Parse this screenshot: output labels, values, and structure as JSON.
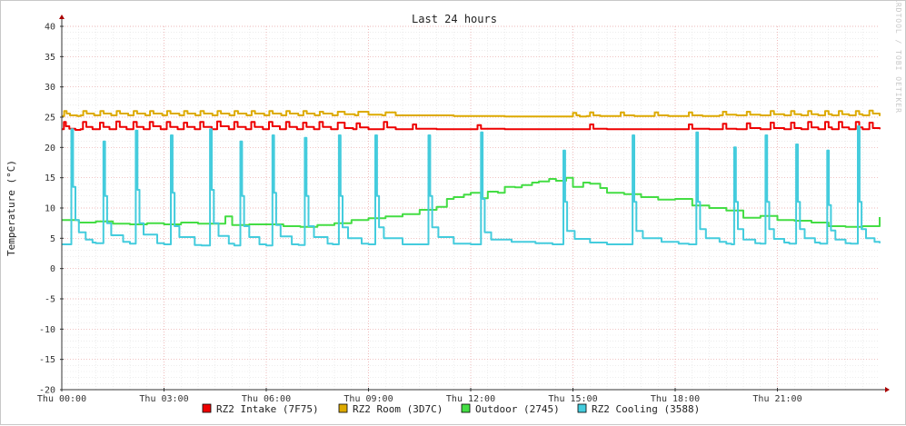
{
  "chart_data": {
    "type": "line",
    "title": "Last 24 hours",
    "ylabel": "Temperature (°C)",
    "xlabel": "",
    "watermark": "RRDTOOL / TOBI OETIKER",
    "ylim": [
      -20,
      40
    ],
    "xlim": [
      0,
      24.0
    ],
    "y_ticks": [
      -20,
      -15,
      -10,
      -5,
      0,
      5,
      10,
      15,
      20,
      25,
      30,
      35,
      40
    ],
    "x_ticks": [
      {
        "value": 0,
        "label": "Thu 00:00"
      },
      {
        "value": 3,
        "label": "Thu 03:00"
      },
      {
        "value": 6,
        "label": "Thu 06:00"
      },
      {
        "value": 9,
        "label": "Thu 09:00"
      },
      {
        "value": 12,
        "label": "Thu 12:00"
      },
      {
        "value": 15,
        "label": "Thu 15:00"
      },
      {
        "value": 18,
        "label": "Thu 18:00"
      },
      {
        "value": 21,
        "label": "Thu 21:00"
      }
    ],
    "grid": true,
    "legend_position": "bottom",
    "series": [
      {
        "name": "RZ2 Intake (7F75)",
        "color": "#ee0000",
        "x": [
          0.0,
          0.06,
          0.12,
          0.22,
          0.4,
          0.55,
          0.62,
          0.72,
          0.9,
          1.04,
          1.12,
          1.22,
          1.4,
          1.53,
          1.6,
          1.7,
          1.9,
          2.02,
          2.1,
          2.2,
          2.4,
          2.5,
          2.58,
          2.68,
          2.9,
          3.0,
          3.08,
          3.18,
          3.4,
          3.5,
          3.58,
          3.68,
          3.9,
          3.98,
          4.06,
          4.16,
          4.4,
          4.48,
          4.56,
          4.66,
          4.9,
          4.98,
          5.06,
          5.16,
          5.4,
          5.48,
          5.56,
          5.66,
          5.9,
          6.0,
          6.08,
          6.18,
          6.4,
          6.5,
          6.58,
          6.68,
          6.9,
          7.0,
          7.08,
          7.18,
          7.4,
          7.48,
          7.56,
          7.66,
          7.9,
          8.0,
          8.1,
          8.3,
          8.55,
          8.65,
          8.75,
          9.0,
          9.35,
          9.45,
          9.55,
          9.8,
          10.0,
          10.2,
          10.3,
          10.4,
          11.0,
          11.5,
          12.1,
          12.2,
          12.3,
          13.0,
          13.5,
          14.0,
          14.5,
          15.0,
          15.4,
          15.5,
          15.6,
          16.0,
          16.5,
          17.0,
          17.5,
          18.0,
          18.3,
          18.4,
          18.5,
          19.0,
          19.3,
          19.4,
          19.5,
          19.8,
          20.0,
          20.1,
          20.2,
          20.5,
          20.7,
          20.8,
          20.9,
          21.2,
          21.3,
          21.4,
          21.5,
          21.7,
          21.8,
          21.9,
          22.0,
          22.2,
          22.3,
          22.4,
          22.5,
          22.6,
          22.7,
          22.8,
          22.9,
          23.1,
          23.2,
          23.3,
          23.4,
          23.5,
          23.6,
          23.7,
          23.8,
          24.0
        ],
        "values": [
          23.0,
          24.2,
          23.5,
          23.1,
          22.9,
          23.0,
          24.2,
          23.4,
          23.0,
          23.0,
          24.1,
          23.4,
          23.0,
          23.0,
          24.3,
          23.4,
          23.0,
          23.0,
          24.2,
          23.4,
          23.0,
          23.0,
          24.2,
          23.5,
          23.0,
          23.0,
          24.2,
          23.4,
          23.0,
          23.0,
          24.1,
          23.4,
          23.0,
          23.0,
          24.2,
          23.4,
          23.0,
          23.0,
          24.3,
          23.5,
          23.0,
          23.0,
          24.2,
          23.4,
          23.0,
          23.0,
          24.2,
          23.4,
          23.0,
          23.0,
          24.2,
          23.5,
          23.0,
          23.0,
          24.2,
          23.4,
          23.0,
          23.0,
          24.1,
          23.4,
          23.0,
          23.0,
          24.2,
          23.4,
          23.0,
          23.0,
          24.1,
          23.2,
          23.0,
          24.0,
          23.3,
          23.0,
          23.0,
          24.2,
          23.3,
          23.0,
          23.0,
          23.0,
          23.8,
          23.1,
          23.0,
          23.0,
          23.0,
          23.7,
          23.1,
          23.0,
          23.0,
          23.0,
          23.0,
          23.0,
          23.0,
          23.8,
          23.1,
          23.0,
          23.0,
          23.0,
          23.0,
          23.0,
          23.0,
          23.8,
          23.1,
          23.0,
          23.0,
          23.9,
          23.1,
          23.0,
          23.0,
          24.0,
          23.2,
          23.0,
          23.0,
          24.1,
          23.2,
          23.0,
          23.0,
          24.1,
          23.2,
          23.0,
          23.0,
          24.2,
          23.3,
          23.0,
          23.0,
          24.2,
          23.3,
          23.0,
          23.0,
          24.2,
          23.3,
          23.0,
          23.0,
          24.2,
          23.3,
          23.0,
          23.0,
          24.1,
          23.2,
          23.0
        ]
      },
      {
        "name": "RZ2 Room (3D7C)",
        "color": "#ddaa00",
        "x": [
          0.0,
          0.07,
          0.14,
          0.24,
          0.45,
          0.55,
          0.63,
          0.73,
          0.95,
          1.04,
          1.13,
          1.23,
          1.45,
          1.53,
          1.61,
          1.71,
          1.95,
          2.02,
          2.11,
          2.21,
          2.45,
          2.5,
          2.59,
          2.69,
          2.95,
          3.0,
          3.09,
          3.19,
          3.45,
          3.5,
          3.59,
          3.69,
          3.92,
          3.98,
          4.07,
          4.17,
          4.42,
          4.48,
          4.57,
          4.67,
          4.92,
          4.98,
          5.07,
          5.17,
          5.42,
          5.48,
          5.57,
          5.67,
          5.94,
          6.0,
          6.09,
          6.19,
          6.44,
          6.5,
          6.59,
          6.69,
          6.94,
          7.0,
          7.09,
          7.19,
          7.42,
          7.48,
          7.57,
          7.67,
          7.94,
          8.0,
          8.1,
          8.3,
          8.6,
          8.7,
          9.0,
          9.4,
          9.5,
          9.8,
          10.0,
          10.5,
          11.0,
          11.5,
          12.0,
          12.5,
          13.0,
          13.5,
          14.0,
          14.5,
          14.95,
          15.0,
          15.1,
          15.2,
          15.4,
          15.5,
          15.6,
          15.8,
          16.0,
          16.3,
          16.4,
          16.5,
          16.8,
          17.0,
          17.3,
          17.4,
          17.5,
          17.8,
          18.0,
          18.3,
          18.4,
          18.5,
          18.8,
          19.0,
          19.3,
          19.4,
          19.5,
          19.8,
          20.0,
          20.1,
          20.2,
          20.5,
          20.7,
          20.8,
          20.9,
          21.2,
          21.3,
          21.4,
          21.5,
          21.7,
          21.8,
          21.9,
          22.0,
          22.2,
          22.3,
          22.4,
          22.5,
          22.6,
          22.7,
          22.8,
          22.9,
          23.1,
          23.2,
          23.3,
          23.4,
          23.5,
          23.6,
          23.7,
          23.8,
          24.0
        ],
        "values": [
          25.2,
          26.0,
          25.6,
          25.3,
          25.2,
          25.3,
          26.0,
          25.6,
          25.3,
          25.3,
          26.0,
          25.6,
          25.3,
          25.3,
          26.0,
          25.6,
          25.3,
          25.3,
          26.0,
          25.6,
          25.3,
          25.3,
          26.0,
          25.6,
          25.3,
          25.3,
          26.0,
          25.6,
          25.3,
          25.3,
          26.0,
          25.6,
          25.3,
          25.3,
          26.0,
          25.6,
          25.3,
          25.3,
          26.0,
          25.6,
          25.3,
          25.3,
          26.0,
          25.6,
          25.3,
          25.3,
          26.0,
          25.6,
          25.3,
          25.3,
          26.0,
          25.6,
          25.3,
          25.3,
          26.0,
          25.6,
          25.3,
          25.3,
          26.0,
          25.6,
          25.3,
          25.3,
          25.9,
          25.6,
          25.3,
          25.3,
          25.9,
          25.5,
          25.3,
          25.9,
          25.4,
          25.3,
          25.8,
          25.3,
          25.3,
          25.3,
          25.3,
          25.2,
          25.2,
          25.2,
          25.1,
          25.1,
          25.1,
          25.1,
          25.1,
          25.7,
          25.3,
          25.1,
          25.2,
          25.8,
          25.3,
          25.2,
          25.2,
          25.2,
          25.8,
          25.3,
          25.2,
          25.2,
          25.2,
          25.8,
          25.3,
          25.2,
          25.2,
          25.2,
          25.8,
          25.3,
          25.2,
          25.2,
          25.3,
          25.9,
          25.4,
          25.3,
          25.3,
          25.9,
          25.4,
          25.3,
          25.3,
          26.0,
          25.5,
          25.3,
          25.3,
          26.0,
          25.5,
          25.3,
          25.3,
          26.0,
          25.5,
          25.3,
          25.3,
          26.0,
          25.5,
          25.3,
          25.3,
          26.0,
          25.5,
          25.3,
          25.3,
          26.0,
          25.5,
          25.3,
          25.3,
          26.1,
          25.6,
          25.2
        ]
      },
      {
        "name": "Outdoor (2745)",
        "color": "#44dd44",
        "x": [
          0.0,
          0.5,
          1.0,
          1.5,
          2.0,
          2.5,
          3.0,
          3.5,
          4.0,
          4.5,
          4.8,
          5.0,
          5.5,
          6.0,
          6.5,
          7.0,
          7.5,
          8.0,
          8.5,
          9.0,
          9.5,
          10.0,
          10.5,
          11.0,
          11.3,
          11.5,
          11.8,
          12.0,
          12.3,
          12.5,
          12.8,
          13.0,
          13.3,
          13.5,
          13.8,
          14.0,
          14.3,
          14.5,
          14.8,
          15.0,
          15.3,
          15.5,
          15.8,
          16.0,
          16.5,
          17.0,
          17.5,
          18.0,
          18.5,
          19.0,
          19.5,
          20.0,
          20.5,
          21.0,
          21.5,
          22.0,
          22.5,
          23.0,
          23.5,
          24.0
        ],
        "values": [
          8.0,
          7.6,
          7.8,
          7.4,
          7.3,
          7.5,
          7.3,
          7.6,
          7.4,
          7.4,
          8.6,
          7.2,
          7.3,
          7.3,
          7.0,
          6.9,
          7.2,
          7.5,
          8.0,
          8.3,
          8.6,
          9.0,
          9.7,
          10.2,
          11.5,
          11.8,
          12.2,
          12.5,
          11.6,
          12.7,
          12.5,
          13.5,
          13.4,
          13.8,
          14.2,
          14.4,
          14.8,
          14.5,
          15.0,
          13.5,
          14.2,
          14.0,
          13.3,
          12.5,
          12.3,
          11.8,
          11.4,
          11.5,
          10.4,
          10.0,
          9.6,
          8.4,
          8.7,
          8.0,
          7.9,
          7.6,
          7.0,
          6.9,
          7.0,
          8.5
        ]
      },
      {
        "name": "RZ2 Cooling (3588)",
        "color": "#44ccdd",
        "x": [
          0.0,
          0.2,
          0.28,
          0.33,
          0.4,
          0.5,
          0.7,
          0.9,
          1.0,
          1.14,
          1.22,
          1.27,
          1.33,
          1.45,
          1.8,
          2.0,
          2.09,
          2.17,
          2.22,
          2.28,
          2.4,
          2.8,
          3.0,
          3.12,
          3.2,
          3.25,
          3.31,
          3.45,
          3.9,
          4.1,
          4.27,
          4.35,
          4.4,
          4.46,
          4.6,
          4.9,
          5.06,
          5.16,
          5.24,
          5.29,
          5.35,
          5.5,
          5.8,
          6.0,
          6.1,
          6.18,
          6.23,
          6.29,
          6.42,
          6.75,
          6.95,
          7.05,
          7.13,
          7.18,
          7.24,
          7.4,
          7.8,
          7.95,
          8.05,
          8.13,
          8.18,
          8.24,
          8.4,
          8.8,
          9.0,
          9.12,
          9.2,
          9.25,
          9.31,
          9.45,
          10.0,
          10.5,
          10.68,
          10.76,
          10.81,
          10.87,
          11.05,
          11.5,
          12.0,
          12.22,
          12.3,
          12.35,
          12.41,
          12.6,
          13.2,
          13.9,
          14.4,
          14.64,
          14.72,
          14.77,
          14.83,
          15.05,
          15.5,
          16.0,
          16.67,
          16.75,
          16.8,
          16.86,
          17.05,
          17.6,
          18.1,
          18.4,
          18.54,
          18.62,
          18.67,
          18.73,
          18.9,
          19.3,
          19.5,
          19.65,
          19.73,
          19.78,
          19.84,
          20.0,
          20.35,
          20.5,
          20.57,
          20.65,
          20.7,
          20.76,
          20.9,
          21.2,
          21.35,
          21.47,
          21.55,
          21.6,
          21.66,
          21.8,
          22.1,
          22.25,
          22.38,
          22.46,
          22.51,
          22.57,
          22.7,
          23.0,
          23.15,
          23.28,
          23.36,
          23.41,
          23.47,
          23.6,
          23.85,
          24.0
        ],
        "values": [
          4.0,
          4.0,
          23.0,
          13.5,
          8.0,
          6.0,
          4.8,
          4.3,
          4.2,
          4.2,
          21.0,
          12.0,
          7.5,
          5.5,
          4.4,
          4.1,
          4.1,
          22.8,
          13.0,
          7.5,
          5.6,
          4.2,
          4.0,
          4.0,
          22.0,
          12.5,
          7.0,
          5.2,
          3.9,
          3.8,
          3.8,
          23.0,
          13.0,
          7.5,
          5.4,
          4.1,
          3.8,
          3.8,
          21.0,
          12.0,
          7.0,
          5.2,
          4.0,
          3.8,
          3.8,
          22.0,
          12.5,
          7.2,
          5.3,
          4.0,
          3.9,
          3.9,
          21.6,
          12.0,
          7.0,
          5.2,
          4.1,
          4.0,
          4.0,
          22.0,
          12.0,
          6.8,
          5.0,
          4.1,
          4.0,
          4.0,
          22.0,
          12.0,
          6.8,
          5.0,
          4.0,
          4.0,
          4.0,
          22.0,
          12.0,
          6.8,
          5.2,
          4.1,
          4.0,
          4.0,
          22.5,
          11.5,
          6.0,
          4.8,
          4.4,
          4.2,
          4.0,
          4.0,
          19.5,
          11.0,
          6.2,
          4.9,
          4.3,
          4.0,
          4.0,
          22.0,
          11.0,
          6.2,
          5.0,
          4.4,
          4.1,
          4.0,
          4.0,
          22.5,
          11.0,
          6.5,
          5.0,
          4.4,
          4.1,
          4.0,
          20.0,
          11.0,
          6.5,
          4.8,
          4.2,
          4.1,
          4.1,
          22.0,
          11.0,
          6.5,
          4.9,
          4.3,
          4.1,
          4.1,
          20.5,
          11.0,
          6.5,
          5.0,
          4.3,
          4.1,
          4.1,
          19.5,
          10.5,
          6.3,
          4.8,
          4.2,
          4.1,
          4.1,
          23.5,
          11.0,
          6.5,
          5.0,
          4.4,
          4.2
        ]
      }
    ]
  }
}
